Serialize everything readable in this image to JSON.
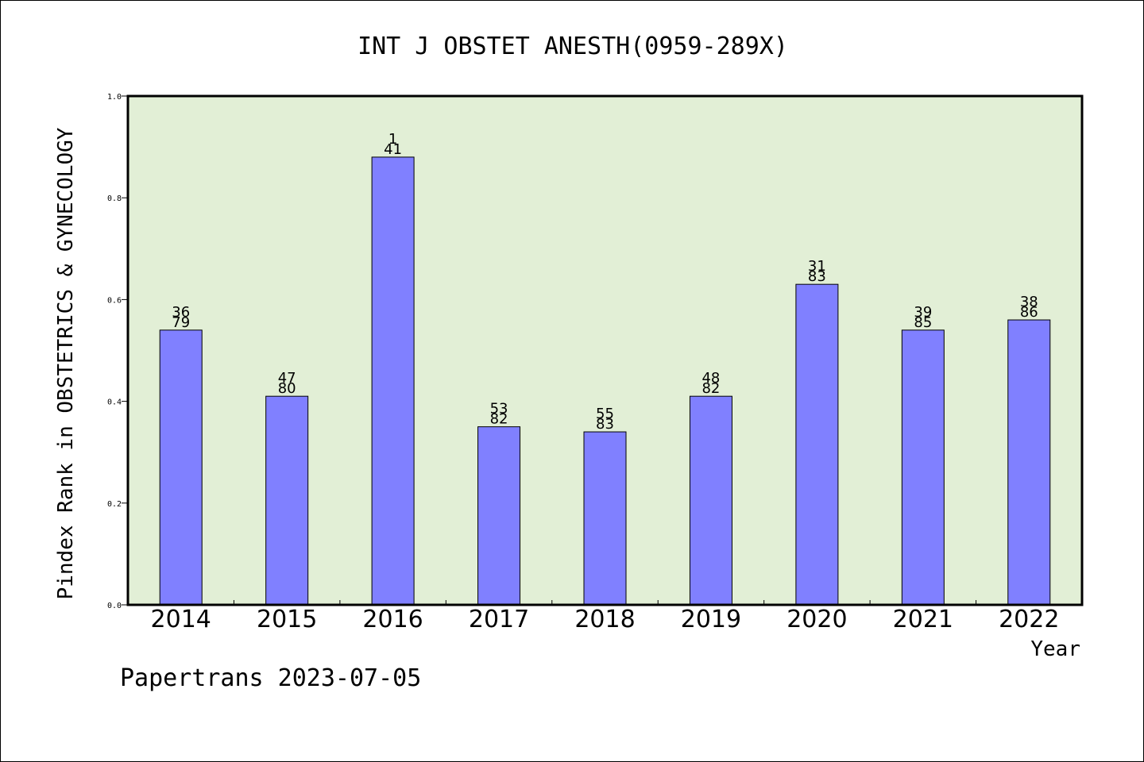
{
  "colors": {
    "plot_background": "#e2efd6",
    "bar_fill": "#8080ff",
    "bar_stroke": "#000000",
    "axis": "#000000"
  },
  "footer": {
    "text": "Papertrans 2023-07-05"
  },
  "chart_data": {
    "type": "bar",
    "title": "INT J OBSTET ANESTH(0959-289X)",
    "xlabel": "Year",
    "ylabel": "Pindex Rank in OBSTETRICS & GYNECOLOGY",
    "ylim": [
      0,
      1.0
    ],
    "yticks": [
      "0.0",
      "0.2",
      "0.4",
      "0.6",
      "0.8",
      "1.0"
    ],
    "grid": false,
    "categories": [
      "2014",
      "2015",
      "2016",
      "2017",
      "2018",
      "2019",
      "2020",
      "2021",
      "2022"
    ],
    "values": [
      0.54,
      0.41,
      0.88,
      0.35,
      0.34,
      0.41,
      0.63,
      0.54,
      0.56
    ],
    "rank_labels": [
      "36",
      "47",
      "1",
      "53",
      "55",
      "48",
      "31",
      "39",
      "38"
    ],
    "total_labels": [
      "79",
      "80",
      "41",
      "82",
      "83",
      "82",
      "83",
      "85",
      "86"
    ]
  }
}
